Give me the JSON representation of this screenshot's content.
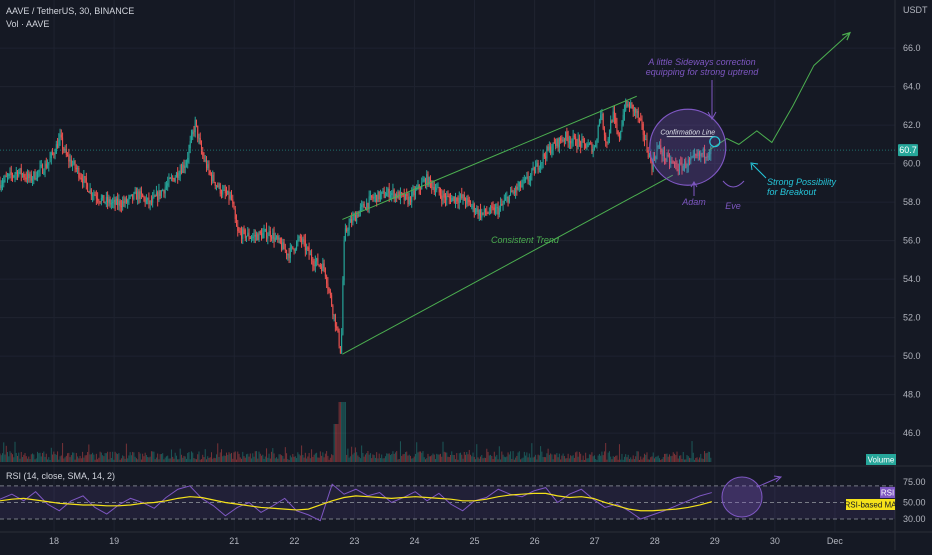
{
  "header": {
    "symbol_line": "AAVE / TetherUS, 30, BINANCE",
    "volume_line": "Vol · AAVE",
    "currency": "USDT"
  },
  "colors": {
    "background": "#151924",
    "grid": "#1f2330",
    "up": "#26a69a",
    "down": "#ef5350",
    "annotation_green": "#4caf50",
    "annotation_purple": "#7e57c2",
    "annotation_teal": "#26c6da",
    "rsi_line": "#7e57c2",
    "rsi_ma": "#f5e21a",
    "price_badge": "#26a69a",
    "rsi_band": "#2a2347"
  },
  "chart_data": [
    {
      "type": "candlestick",
      "title": "AAVE / TetherUS, 30, BINANCE",
      "y_axis_unit": "USDT",
      "y_ticks": [
        46.0,
        48.0,
        50.0,
        52.0,
        54.0,
        56.0,
        58.0,
        60.0,
        62.0,
        64.0,
        66.0
      ],
      "ylim": [
        44.5,
        68.5
      ],
      "x_ticks": [
        "18",
        "19",
        "21",
        "22",
        "23",
        "24",
        "25",
        "26",
        "27",
        "28",
        "29",
        "30",
        "Dec"
      ],
      "x_tick_days": [
        18,
        19,
        21,
        22,
        23,
        24,
        25,
        26,
        27,
        28,
        29,
        30,
        31
      ],
      "xlim_days": [
        17.1,
        32.0
      ],
      "path_days": [
        17.1,
        17.4,
        17.6,
        17.9,
        18.1,
        18.2,
        18.4,
        18.6,
        18.8,
        19.0,
        19.2,
        19.4,
        19.6,
        19.8,
        20.0,
        20.2,
        20.35,
        20.45,
        20.6,
        20.8,
        20.95,
        21.05,
        21.3,
        21.6,
        21.9,
        22.1,
        22.3,
        22.5,
        22.7,
        22.78,
        22.82,
        22.85,
        22.9,
        23.1,
        23.3,
        23.6,
        23.9,
        24.2,
        24.5,
        24.8,
        25.1,
        25.4,
        25.6,
        25.9,
        26.2,
        26.5,
        26.8,
        27.0,
        27.1,
        27.2,
        27.3,
        27.4,
        27.5,
        27.6,
        27.7,
        27.8,
        27.95,
        28.05,
        28.2,
        28.4,
        28.6,
        28.8,
        28.95
      ],
      "path_close": [
        59.0,
        59.6,
        59.2,
        60.0,
        61.3,
        60.4,
        59.6,
        58.6,
        58.1,
        57.9,
        58.0,
        58.4,
        57.9,
        58.6,
        59.3,
        60.1,
        62.1,
        60.6,
        59.4,
        58.5,
        58.2,
        56.4,
        56.2,
        56.4,
        55.3,
        56.1,
        55.0,
        54.6,
        51.5,
        50.1,
        55.5,
        56.4,
        56.8,
        57.6,
        58.2,
        58.5,
        58.1,
        59.2,
        58.2,
        58.2,
        57.4,
        57.6,
        58.4,
        59.2,
        60.6,
        61.4,
        61.0,
        60.8,
        62.7,
        61.0,
        62.6,
        61.2,
        63.0,
        63.0,
        62.6,
        61.7,
        59.9,
        60.9,
        60.2,
        59.8,
        60.1,
        60.5,
        60.7
      ],
      "last_price": "60.7",
      "series": [
        {
          "name": "Volume",
          "label": "Volume"
        }
      ],
      "annotations": {
        "trend_upper": {
          "from": [
            22.8,
            57.1
          ],
          "to": [
            27.7,
            63.5
          ]
        },
        "trend_lower": {
          "from": [
            22.8,
            50.1
          ],
          "to": [
            28.3,
            59.4
          ]
        },
        "projection": {
          "points": [
            [
              28.9,
              60.7
            ],
            [
              29.2,
              61.3
            ],
            [
              29.4,
              61.0
            ],
            [
              29.7,
              61.7
            ],
            [
              29.95,
              61.1
            ],
            [
              30.3,
              63.0
            ],
            [
              30.65,
              65.1
            ],
            [
              31.25,
              66.8
            ]
          ]
        },
        "confirmation_line": {
          "from": [
            28.2,
            61.4
          ],
          "to": [
            29.0,
            61.4
          ]
        },
        "circle_center": [
          28.55,
          60.85
        ],
        "label_consistent_trend": "Consistent Trend",
        "label_sideways_line1": "A little Sideways correction",
        "label_sideways_line2": "equipping for strong uptrend",
        "label_confirmation": "Confirmation Line",
        "label_adam": "Adam",
        "label_eve": "Eve",
        "label_breakout_line1": "Strong Possibility",
        "label_breakout_line2": "for Breakout"
      }
    },
    {
      "type": "line",
      "title": "RSI (14, close, SMA, 14, 2)",
      "y_ticks": [
        30.0,
        50.0,
        75.0
      ],
      "ylim": [
        24,
        82
      ],
      "band": [
        30,
        70
      ],
      "series": [
        {
          "name": "RSI",
          "values": [
            54,
            60,
            52,
            63,
            48,
            40,
            52,
            58,
            44,
            36,
            47,
            55,
            50,
            43,
            56,
            66,
            70,
            55,
            46,
            34,
            44,
            50,
            38,
            46,
            55,
            40,
            35,
            28,
            72,
            60,
            66,
            58,
            62,
            50,
            56,
            63,
            52,
            61,
            48,
            40,
            52,
            56,
            66,
            60,
            57,
            64,
            68,
            50,
            60,
            66,
            54,
            44,
            48,
            40,
            30,
            35,
            40,
            46,
            52,
            58,
            62
          ]
        },
        {
          "name": "RSI-based MA",
          "values": [
            52,
            54,
            55,
            53,
            51,
            49,
            48,
            47,
            47,
            46,
            46,
            47,
            49,
            50,
            52,
            55,
            57,
            56,
            53,
            50,
            48,
            46,
            44,
            43,
            42,
            41,
            42,
            47,
            52,
            56,
            58,
            57,
            56,
            55,
            56,
            57,
            56,
            55,
            54,
            52,
            52,
            54,
            57,
            59,
            60,
            61,
            61,
            58,
            56,
            57,
            55,
            50,
            46,
            42,
            40,
            40,
            41,
            42,
            44,
            47,
            51
          ]
        }
      ],
      "legend": [
        "RSI",
        "RSI-based MA"
      ]
    }
  ]
}
